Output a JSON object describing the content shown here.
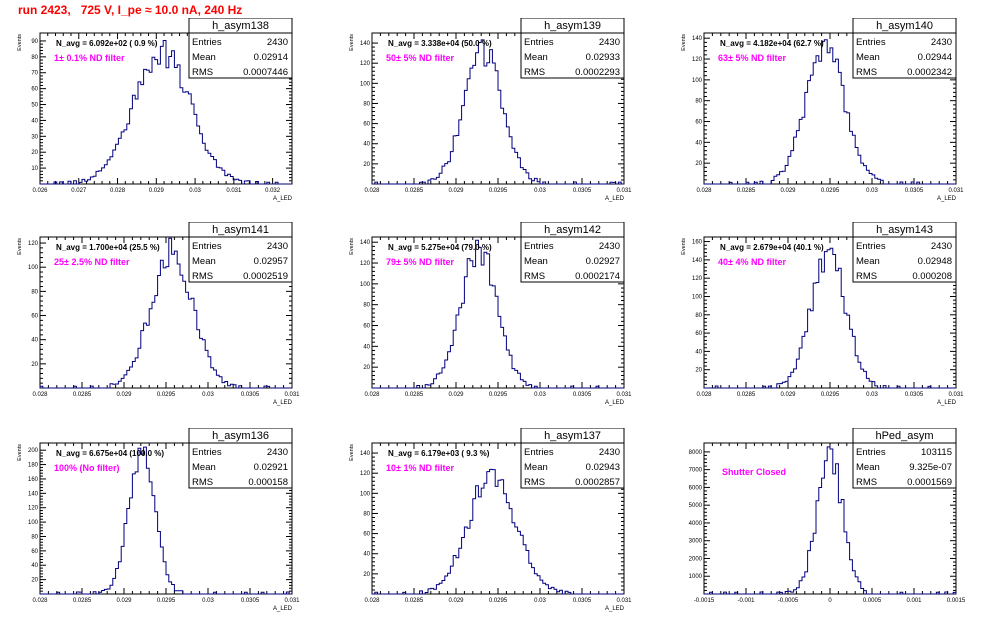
{
  "header": {
    "run_title": "run 2423,   725 V, I_pe ≈ 10.0 nA, 240 Hz"
  },
  "colors": {
    "hist_line": "#00007f",
    "frame": "#000000",
    "annotation": "#ff00ff",
    "title_red": "#ff0000"
  },
  "chart_data": [
    {
      "type": "histogram",
      "hist_name": "h_asym138",
      "entries_label": "Entries",
      "mean_label": "Mean",
      "rms_label": "RMS",
      "entries": "2430",
      "mean": "0.02914",
      "rms": "0.0007446",
      "navg_label": "N_avg = 6.092e+02 ( 0.9 %)",
      "annotation": "1± 0.1% ND filter",
      "ylabel": "Events",
      "xlabel": "A_LED",
      "xlim": [
        0.026,
        0.0325
      ],
      "ylim": [
        0,
        95
      ],
      "xticks": [
        "0.026",
        "0.027",
        "0.028",
        "0.029",
        "0.03",
        "0.031",
        "0.032"
      ],
      "yticks": [
        "10",
        "20",
        "30",
        "40",
        "50",
        "60",
        "70",
        "80",
        "90"
      ],
      "mean_value": 0.02914,
      "sigma": 0.0007446,
      "peak": 82
    },
    {
      "type": "histogram",
      "hist_name": "h_asym139",
      "entries_label": "Entries",
      "mean_label": "Mean",
      "rms_label": "RMS",
      "entries": "2430",
      "mean": "0.02933",
      "rms": "0.0002293",
      "navg_label": "N_avg = 3.338e+04 (50.0 %)",
      "annotation": "50± 5% ND filter",
      "ylabel": "Events",
      "xlabel": "A_LED",
      "xlim": [
        0.028,
        0.031
      ],
      "ylim": [
        0,
        150
      ],
      "xticks": [
        "0.028",
        "0.0285",
        "0.029",
        "0.0295",
        "0.03",
        "0.0305",
        "0.031"
      ],
      "yticks": [
        "20",
        "40",
        "60",
        "80",
        "100",
        "120",
        "140"
      ],
      "mean_value": 0.02933,
      "sigma": 0.0002293,
      "peak": 132
    },
    {
      "type": "histogram",
      "hist_name": "h_asym140",
      "entries_label": "Entries",
      "mean_label": "Mean",
      "rms_label": "RMS",
      "entries": "2430",
      "mean": "0.02944",
      "rms": "0.0002342",
      "navg_label": "N_avg = 4.182e+04 (62.7 %)",
      "annotation": "63± 5% ND filter",
      "ylabel": "Events",
      "xlabel": "A_LED",
      "xlim": [
        0.028,
        0.031
      ],
      "ylim": [
        0,
        145
      ],
      "xticks": [
        "0.028",
        "0.0285",
        "0.029",
        "0.0295",
        "0.03",
        "0.0305",
        "0.031"
      ],
      "yticks": [
        "20",
        "40",
        "60",
        "80",
        "100",
        "120",
        "140"
      ],
      "mean_value": 0.02944,
      "sigma": 0.0002342,
      "peak": 130
    },
    {
      "type": "histogram",
      "hist_name": "h_asym141",
      "entries_label": "Entries",
      "mean_label": "Mean",
      "rms_label": "RMS",
      "entries": "2430",
      "mean": "0.02957",
      "rms": "0.0002519",
      "navg_label": "N_avg = 1.700e+04 (25.5 %)",
      "annotation": "25± 2.5% ND filter",
      "ylabel": "Events",
      "xlabel": "A_LED",
      "xlim": [
        0.028,
        0.031
      ],
      "ylim": [
        0,
        125
      ],
      "xticks": [
        "0.028",
        "0.0285",
        "0.029",
        "0.0295",
        "0.03",
        "0.0305",
        "0.031"
      ],
      "yticks": [
        "20",
        "40",
        "60",
        "80",
        "100",
        "120"
      ],
      "mean_value": 0.02957,
      "sigma": 0.0002519,
      "peak": 112
    },
    {
      "type": "histogram",
      "hist_name": "h_asym142",
      "entries_label": "Entries",
      "mean_label": "Mean",
      "rms_label": "RMS",
      "entries": "2430",
      "mean": "0.02927",
      "rms": "0.0002174",
      "navg_label": "N_avg = 5.275e+04 (79.0 %)",
      "annotation": "79± 5% ND filter",
      "ylabel": "Events",
      "xlabel": "A_LED",
      "xlim": [
        0.028,
        0.031
      ],
      "ylim": [
        0,
        145
      ],
      "xticks": [
        "0.028",
        "0.0285",
        "0.029",
        "0.0295",
        "0.03",
        "0.0305",
        "0.031"
      ],
      "yticks": [
        "20",
        "40",
        "60",
        "80",
        "100",
        "120",
        "140"
      ],
      "mean_value": 0.02927,
      "sigma": 0.0002174,
      "peak": 132
    },
    {
      "type": "histogram",
      "hist_name": "h_asym143",
      "entries_label": "Entries",
      "mean_label": "Mean",
      "rms_label": "RMS",
      "entries": "2430",
      "mean": "0.02948",
      "rms": "0.000208",
      "navg_label": "N_avg = 2.679e+04 (40.1 %)",
      "annotation": "40± 4% ND filter",
      "ylabel": "Events",
      "xlabel": "A_LED",
      "xlim": [
        0.028,
        0.031
      ],
      "ylim": [
        0,
        165
      ],
      "xticks": [
        "0.028",
        "0.0285",
        "0.029",
        "0.0295",
        "0.03",
        "0.0305",
        "0.031"
      ],
      "yticks": [
        "20",
        "40",
        "60",
        "80",
        "100",
        "120",
        "140",
        "160"
      ],
      "mean_value": 0.02948,
      "sigma": 0.000208,
      "peak": 145
    },
    {
      "type": "histogram",
      "hist_name": "h_asym136",
      "entries_label": "Entries",
      "mean_label": "Mean",
      "rms_label": "RMS",
      "entries": "2430",
      "mean": "0.02921",
      "rms": "0.000158",
      "navg_label": "N_avg = 6.675e+04 (100.0 %)",
      "annotation": "100% (No filter)",
      "ylabel": "Events",
      "xlabel": "A_LED",
      "xlim": [
        0.028,
        0.031
      ],
      "ylim": [
        0,
        210
      ],
      "xticks": [
        "0.028",
        "0.0285",
        "0.029",
        "0.0295",
        "0.03",
        "0.0305",
        "0.031"
      ],
      "yticks": [
        "20",
        "40",
        "60",
        "80",
        "100",
        "120",
        "140",
        "160",
        "180",
        "200"
      ],
      "mean_value": 0.02921,
      "sigma": 0.000158,
      "peak": 192
    },
    {
      "type": "histogram",
      "hist_name": "h_asym137",
      "entries_label": "Entries",
      "mean_label": "Mean",
      "rms_label": "RMS",
      "entries": "2430",
      "mean": "0.02943",
      "rms": "0.0002857",
      "navg_label": "N_avg = 6.179e+03 ( 9.3 %)",
      "annotation": "10± 1% ND filter",
      "ylabel": "Events",
      "xlabel": "A_LED",
      "xlim": [
        0.028,
        0.031
      ],
      "ylim": [
        0,
        150
      ],
      "xticks": [
        "0.028",
        "0.0285",
        "0.029",
        "0.0295",
        "0.03",
        "0.0305",
        "0.031"
      ],
      "yticks": [
        "20",
        "40",
        "60",
        "80",
        "100",
        "120",
        "140"
      ],
      "mean_value": 0.02943,
      "sigma": 0.0002857,
      "peak": 118
    },
    {
      "type": "histogram",
      "hist_name": "hPed_asym",
      "entries_label": "Entries",
      "mean_label": "Mean",
      "rms_label": "RMS",
      "entries": "103115",
      "mean": "9.325e-07",
      "rms": "0.0001569",
      "navg_label": "",
      "annotation": "Shutter Closed",
      "ylabel": "",
      "xlabel": "",
      "xlim": [
        -0.0015,
        0.0015
      ],
      "ylim": [
        0,
        8500
      ],
      "xticks": [
        "-0.0015",
        "-0.001",
        "-0.0005",
        "0",
        "0.0005",
        "0.001",
        "0.0015"
      ],
      "yticks": [
        "1000",
        "2000",
        "3000",
        "4000",
        "5000",
        "6000",
        "7000",
        "8000"
      ],
      "mean_value": 9.325e-07,
      "sigma": 0.0001569,
      "peak": 7600
    }
  ]
}
